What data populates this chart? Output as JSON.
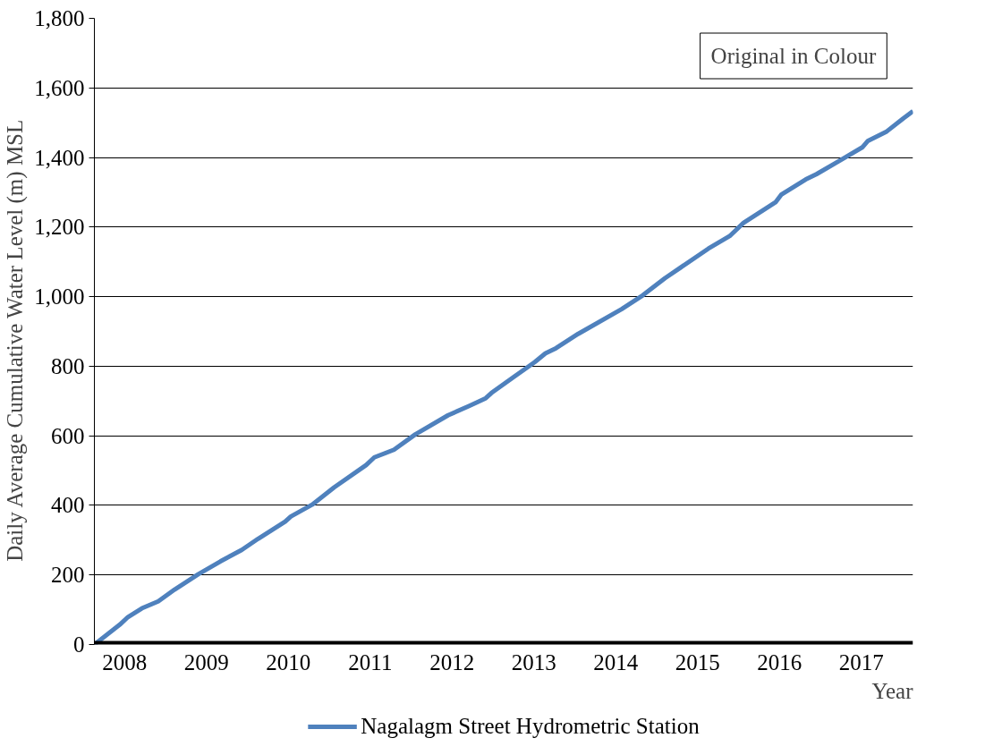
{
  "chart_data": {
    "type": "line",
    "xlabel": "Year",
    "ylabel": "Daily Average Cumulative Water Level   (m)  MSL",
    "annotations": [
      "Original in Colour"
    ],
    "x": [
      2007.63,
      2007.94,
      2008.04,
      2008.21,
      2008.41,
      2008.61,
      2008.9,
      2009.17,
      2009.43,
      2009.63,
      2009.96,
      2010.03,
      2010.29,
      2010.56,
      2010.95,
      2011.05,
      2011.29,
      2011.55,
      2011.95,
      2012.21,
      2012.41,
      2012.48,
      2012.74,
      2013.01,
      2013.14,
      2013.27,
      2013.54,
      2014.07,
      2014.33,
      2014.6,
      2015.13,
      2015.39,
      2015.56,
      2015.95,
      2016.02,
      2016.32,
      2016.45,
      2016.72,
      2017.01,
      2017.08,
      2017.31,
      2017.51,
      2017.63
    ],
    "series": [
      {
        "name": "Nagalagm Street Hydrometric Station",
        "color": "#4f81bd",
        "values": [
          0,
          57,
          79,
          104,
          124,
          158,
          202,
          239,
          272,
          304,
          353,
          368,
          402,
          452,
          516,
          538,
          560,
          604,
          659,
          686,
          708,
          723,
          767,
          812,
          837,
          852,
          893,
          964,
          1004,
          1053,
          1138,
          1174,
          1212,
          1271,
          1293,
          1337,
          1352,
          1389,
          1429,
          1448,
          1475,
          1512,
          1533
        ]
      }
    ],
    "xlim": [
      2007.63,
      2017.63
    ],
    "xticks": [
      2008,
      2009,
      2010,
      2011,
      2012,
      2013,
      2014,
      2015,
      2016,
      2017
    ],
    "ylim": [
      0,
      1800
    ],
    "yticks": [
      0,
      {
        "value": 200,
        "label": "200"
      },
      {
        "value": 400,
        "label": "400"
      },
      {
        "value": 600,
        "label": "600"
      },
      {
        "value": 800,
        "label": "800"
      },
      {
        "value": 1000,
        "label": "1,000"
      },
      {
        "value": 1200,
        "label": "1,200"
      },
      {
        "value": 1400,
        "label": "1,400"
      },
      {
        "value": 1600,
        "label": "1,600"
      },
      {
        "value": 1800,
        "label": "1,800"
      }
    ],
    "grid": "y",
    "legend": "bottom",
    "marker": "none",
    "line_style": "solid"
  }
}
